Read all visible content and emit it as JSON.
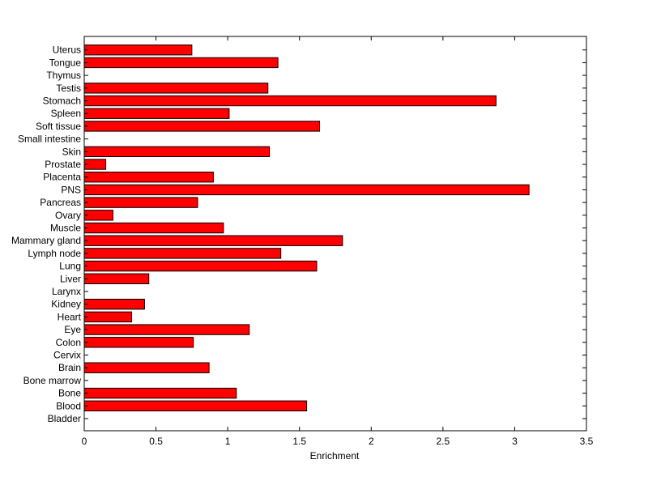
{
  "chart_data": {
    "type": "bar",
    "orientation": "horizontal",
    "categories": [
      "Bladder",
      "Blood",
      "Bone",
      "Bone marrow",
      "Brain",
      "Cervix",
      "Colon",
      "Eye",
      "Heart",
      "Kidney",
      "Larynx",
      "Liver",
      "Lung",
      "Lymph node",
      "Mammary gland",
      "Muscle",
      "Ovary",
      "Pancreas",
      "PNS",
      "Placenta",
      "Prostate",
      "Skin",
      "Small intestine",
      "Soft tissue",
      "Spleen",
      "Stomach",
      "Testis",
      "Thymus",
      "Tongue",
      "Uterus"
    ],
    "values": [
      0,
      1.55,
      1.06,
      0,
      0.87,
      0,
      0.76,
      1.15,
      0.33,
      0.42,
      0,
      0.45,
      1.62,
      1.37,
      1.8,
      0.97,
      0.2,
      0.79,
      3.1,
      0.9,
      0.15,
      1.29,
      0,
      1.64,
      1.01,
      2.87,
      1.28,
      0,
      1.35,
      0.75
    ],
    "title": "",
    "xlabel": "Enrichment",
    "ylabel": "",
    "xlim": [
      0,
      3.5
    ],
    "xticks": [
      "0",
      "0.5",
      "1",
      "1.5",
      "2",
      "2.5",
      "3",
      "3.5"
    ],
    "bar_color": "#ff0000",
    "grid": false
  }
}
